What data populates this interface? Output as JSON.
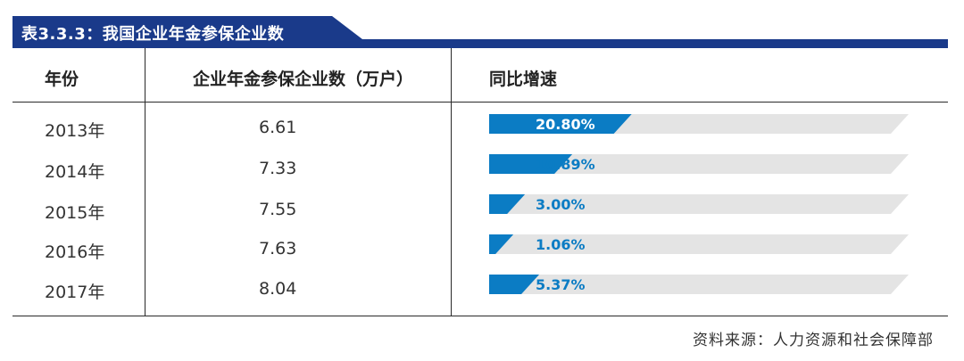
{
  "title": "表3.3.3：我国企业年金参保企业数",
  "headers": {
    "year": "年份",
    "count": "企业年金参保企业数（万户）",
    "growth": "同比增速"
  },
  "rows": [
    {
      "year": "2013年",
      "count": "6.61",
      "growth_label": "20.80%"
    },
    {
      "year": "2014年",
      "count": "7.33",
      "growth_label": "10.89%"
    },
    {
      "year": "2015年",
      "count": "7.55",
      "growth_label": "3.00%"
    },
    {
      "year": "2016年",
      "count": "7.63",
      "growth_label": "1.06%"
    },
    {
      "year": "2017年",
      "count": "8.04",
      "growth_label": "5.37%"
    }
  ],
  "source": "资料来源：人力资源和社会保障部",
  "colors": {
    "brand": "#1a3a8a",
    "bar_fill": "#0b7cc4",
    "bar_track": "#e4e4e4",
    "label_light": "#ffffff",
    "label_dark": "#0b7cc4"
  },
  "chart_data": {
    "type": "bar",
    "orientation": "horizontal",
    "categories": [
      "2013年",
      "2014年",
      "2015年",
      "2016年",
      "2017年"
    ],
    "series": [
      {
        "name": "同比增速",
        "values": [
          20.8,
          10.89,
          3.0,
          1.06,
          5.37
        ]
      }
    ],
    "unit": "%",
    "xlim": [
      0,
      70
    ]
  }
}
